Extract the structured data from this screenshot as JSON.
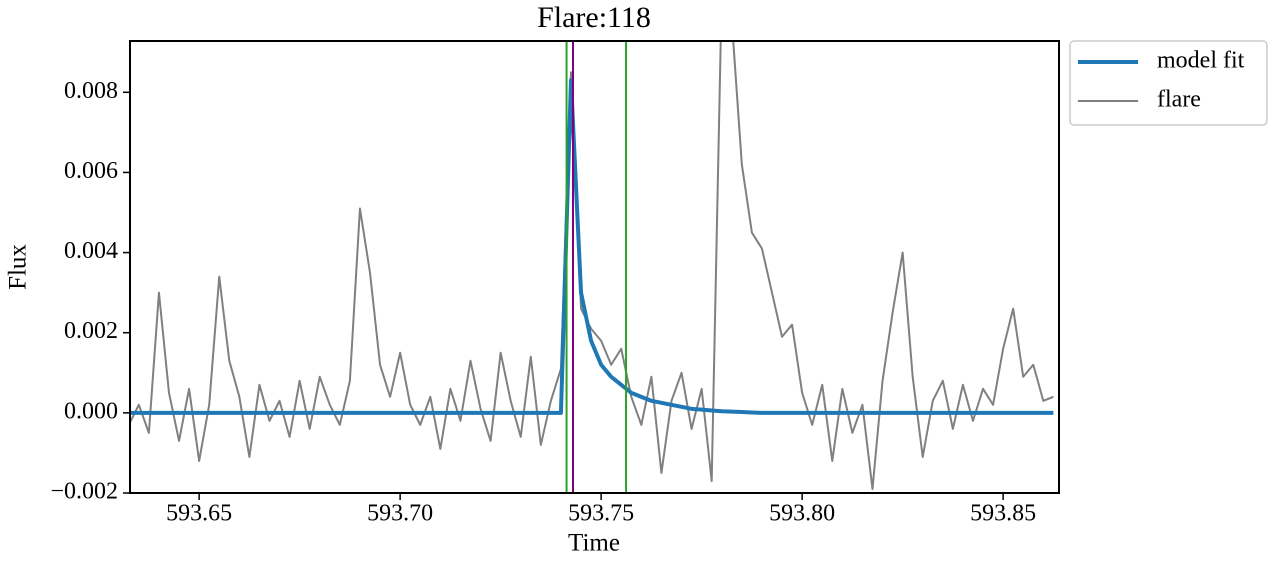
{
  "chart_data": {
    "type": "line",
    "title": "Flare:118",
    "xlabel": "Time",
    "ylabel": "Flux",
    "x": [
      593.6325,
      593.635,
      593.6375,
      593.64,
      593.6425,
      593.645,
      593.6475,
      593.65,
      593.6525,
      593.655,
      593.6575,
      593.66,
      593.6625,
      593.665,
      593.6675,
      593.67,
      593.6725,
      593.675,
      593.6775,
      593.68,
      593.6825,
      593.685,
      593.6875,
      593.69,
      593.6925,
      593.695,
      593.6975,
      593.7,
      593.7025,
      593.705,
      593.7075,
      593.71,
      593.7125,
      593.715,
      593.7175,
      593.72,
      593.7225,
      593.725,
      593.7275,
      593.73,
      593.7325,
      593.735,
      593.7375,
      593.74,
      593.7425,
      593.745,
      593.7475,
      593.75,
      593.7525,
      593.755,
      593.7575,
      593.76,
      593.7625,
      593.765,
      593.7675,
      593.77,
      593.7725,
      593.775,
      593.7775,
      593.78,
      593.7825,
      593.785,
      593.7875,
      593.79,
      593.7925,
      593.795,
      593.7975,
      593.8,
      593.8025,
      593.805,
      593.8075,
      593.81,
      593.8125,
      593.815,
      593.8175,
      593.82,
      593.8225,
      593.825,
      593.8275,
      593.83,
      593.8325,
      593.835,
      593.8375,
      593.84,
      593.8425,
      593.845,
      593.8475,
      593.85,
      593.8525,
      593.855,
      593.8575,
      593.86,
      593.8625
    ],
    "series": [
      {
        "name": "model fit",
        "color": "#1f77b4",
        "linewidth": 4,
        "values": [
          0,
          0,
          0,
          0,
          0,
          0,
          0,
          0,
          0,
          0,
          0,
          0,
          0,
          0,
          0,
          0,
          0,
          0,
          0,
          0,
          0,
          0,
          0,
          0,
          0,
          0,
          0,
          0,
          0,
          0,
          0,
          0,
          0,
          0,
          0,
          0,
          0,
          0,
          0,
          0,
          0,
          0,
          0,
          0,
          0.0083,
          0.003,
          0.0018,
          0.0012,
          0.0009,
          0.0007,
          0.0005,
          0.0004,
          0.0003,
          0.00025,
          0.0002,
          0.00015,
          0.0001,
          8e-05,
          6e-05,
          4e-05,
          3e-05,
          2e-05,
          1e-05,
          0,
          0,
          0,
          0,
          0,
          0,
          0,
          0,
          0,
          0,
          0,
          0,
          0,
          0,
          0,
          0,
          0,
          0,
          0,
          0,
          0,
          0,
          0,
          0,
          0,
          0,
          0,
          0,
          0,
          0
        ]
      },
      {
        "name": "flare",
        "color": "#808080",
        "linewidth": 2,
        "values": [
          -0.0003,
          0.0002,
          -0.0005,
          0.003,
          0.0005,
          -0.0007,
          0.0006,
          -0.0012,
          0.0002,
          0.0034,
          0.0013,
          0.0004,
          -0.0011,
          0.0007,
          -0.0002,
          0.0003,
          -0.0006,
          0.0008,
          -0.0004,
          0.0009,
          0.0002,
          -0.0003,
          0.0008,
          0.0051,
          0.0035,
          0.0012,
          0.0004,
          0.0015,
          0.0002,
          -0.0003,
          0.0004,
          -0.0009,
          0.0006,
          -0.0002,
          0.0013,
          0.0001,
          -0.0007,
          0.0015,
          0.0003,
          -0.0006,
          0.0014,
          -0.0008,
          0.0003,
          0.0011,
          0.0085,
          0.0026,
          0.0021,
          0.0018,
          0.0012,
          0.0016,
          0.0004,
          -0.0003,
          0.0009,
          -0.0015,
          0.0003,
          0.001,
          -0.0004,
          0.0006,
          -0.0017,
          0.0105,
          0.0098,
          0.0062,
          0.0045,
          0.0041,
          0.003,
          0.0019,
          0.0022,
          0.0005,
          -0.0003,
          0.0007,
          -0.0012,
          0.0006,
          -0.0005,
          0.0002,
          -0.0019,
          0.0008,
          0.0025,
          0.004,
          0.0009,
          -0.0011,
          0.0003,
          0.0008,
          -0.0004,
          0.0007,
          -0.0002,
          0.0006,
          0.0002,
          0.0016,
          0.0026,
          0.0009,
          0.0012,
          0.0003,
          0.0004
        ]
      }
    ],
    "vlines": [
      {
        "x": 593.7414,
        "color": "#2ca02c"
      },
      {
        "x": 593.743,
        "color": "#800080"
      },
      {
        "x": 593.7562,
        "color": "#2ca02c"
      }
    ],
    "xlim": [
      593.6328,
      593.8639
    ],
    "ylim": [
      -0.002,
      0.00928
    ],
    "xticks": [
      593.65,
      {
        "value": 593.7,
        "label": "593.70"
      },
      593.75,
      {
        "value": 593.8,
        "label": "593.80"
      },
      593.85
    ],
    "yticks": [
      {
        "value": -0.002,
        "label": "−0.002"
      },
      {
        "value": 0,
        "label": "0.000"
      },
      0.002,
      0.004,
      0.006,
      0.008
    ],
    "grid": false,
    "legend": "outside upper right"
  }
}
